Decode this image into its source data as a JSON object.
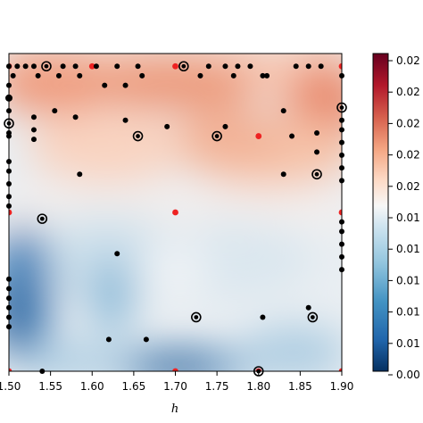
{
  "chart_data": {
    "type": "heatmap",
    "subtype": "filled-contour-with-scatter",
    "xlabel": "h",
    "ylabel": "",
    "xlim": [
      1.5,
      1.9
    ],
    "ylim": [
      0,
      1
    ],
    "x_ticks": [
      "1.50",
      "1.55",
      "1.60",
      "1.65",
      "1.70",
      "1.75",
      "1.80",
      "1.85",
      "1.90"
    ],
    "colormap": "RdBu_r",
    "colorbar": {
      "range": [
        0.0,
        0.027
      ],
      "tick_labels": [
        "0.00",
        "0.01",
        "0.01",
        "0.01",
        "0.01",
        "0.01",
        "0.02",
        "0.02",
        "0.02",
        "0.02",
        "0.02"
      ]
    },
    "red_points": [
      [
        1.5,
        0.96
      ],
      [
        1.6,
        0.96
      ],
      [
        1.7,
        0.96
      ],
      [
        1.9,
        0.96
      ],
      [
        1.8,
        0.74
      ],
      [
        1.5,
        0.5
      ],
      [
        1.7,
        0.5
      ],
      [
        1.9,
        0.5
      ],
      [
        1.5,
        0.0
      ],
      [
        1.7,
        0.0
      ],
      [
        1.8,
        0.0
      ],
      [
        1.9,
        0.0
      ]
    ],
    "black_points": [
      [
        1.5,
        0.96,
        3
      ],
      [
        1.51,
        0.96,
        3
      ],
      [
        1.52,
        0.96,
        3
      ],
      [
        1.53,
        0.96,
        3
      ],
      [
        1.545,
        0.96,
        5
      ],
      [
        1.565,
        0.96,
        3
      ],
      [
        1.58,
        0.96,
        3
      ],
      [
        1.605,
        0.96,
        3
      ],
      [
        1.63,
        0.96,
        3
      ],
      [
        1.655,
        0.96,
        3
      ],
      [
        1.71,
        0.96,
        5
      ],
      [
        1.74,
        0.96,
        3
      ],
      [
        1.76,
        0.96,
        3
      ],
      [
        1.775,
        0.96,
        3
      ],
      [
        1.79,
        0.96,
        3
      ],
      [
        1.845,
        0.96,
        3
      ],
      [
        1.86,
        0.96,
        3
      ],
      [
        1.875,
        0.96,
        3
      ],
      [
        1.505,
        0.93,
        3
      ],
      [
        1.535,
        0.93,
        3
      ],
      [
        1.56,
        0.93,
        3
      ],
      [
        1.585,
        0.93,
        3
      ],
      [
        1.66,
        0.93,
        3
      ],
      [
        1.73,
        0.93,
        3
      ],
      [
        1.77,
        0.93,
        3
      ],
      [
        1.805,
        0.93,
        3
      ],
      [
        1.81,
        0.93,
        3
      ],
      [
        1.9,
        0.93,
        3
      ],
      [
        1.5,
        0.9,
        3
      ],
      [
        1.615,
        0.9,
        3
      ],
      [
        1.64,
        0.9,
        3
      ],
      [
        1.5,
        0.86,
        4
      ],
      [
        1.5,
        0.82,
        3
      ],
      [
        1.5,
        0.78,
        5
      ],
      [
        1.9,
        0.83,
        5
      ],
      [
        1.9,
        0.79,
        3
      ],
      [
        1.9,
        0.76,
        3
      ],
      [
        1.9,
        0.72,
        3
      ],
      [
        1.9,
        0.68,
        3
      ],
      [
        1.9,
        0.64,
        3
      ],
      [
        1.9,
        0.6,
        3
      ],
      [
        1.53,
        0.8,
        3
      ],
      [
        1.555,
        0.82,
        3
      ],
      [
        1.5,
        0.75,
        3
      ],
      [
        1.58,
        0.8,
        3
      ],
      [
        1.53,
        0.76,
        3
      ],
      [
        1.5,
        0.74,
        3
      ],
      [
        1.53,
        0.73,
        3
      ],
      [
        1.64,
        0.79,
        3
      ],
      [
        1.69,
        0.77,
        3
      ],
      [
        1.655,
        0.74,
        5
      ],
      [
        1.75,
        0.74,
        5
      ],
      [
        1.76,
        0.77,
        3
      ],
      [
        1.83,
        0.82,
        3
      ],
      [
        1.87,
        0.75,
        3
      ],
      [
        1.84,
        0.74,
        3
      ],
      [
        1.87,
        0.69,
        3
      ],
      [
        1.87,
        0.62,
        5
      ],
      [
        1.83,
        0.62,
        3
      ],
      [
        1.5,
        0.66,
        3
      ],
      [
        1.5,
        0.63,
        3
      ],
      [
        1.5,
        0.59,
        3
      ],
      [
        1.5,
        0.55,
        3
      ],
      [
        1.5,
        0.52,
        3
      ],
      [
        1.585,
        0.62,
        3
      ],
      [
        1.54,
        0.48,
        5
      ],
      [
        1.9,
        0.47,
        3
      ],
      [
        1.9,
        0.44,
        3
      ],
      [
        1.9,
        0.4,
        3
      ],
      [
        1.9,
        0.36,
        3
      ],
      [
        1.9,
        0.32,
        3
      ],
      [
        1.63,
        0.37,
        3
      ],
      [
        1.5,
        0.29,
        3
      ],
      [
        1.5,
        0.26,
        3
      ],
      [
        1.5,
        0.23,
        3
      ],
      [
        1.5,
        0.2,
        3
      ],
      [
        1.5,
        0.17,
        3
      ],
      [
        1.5,
        0.14,
        3
      ],
      [
        1.725,
        0.17,
        5
      ],
      [
        1.865,
        0.17,
        5
      ],
      [
        1.805,
        0.17,
        3
      ],
      [
        1.86,
        0.2,
        3
      ],
      [
        1.62,
        0.1,
        3
      ],
      [
        1.665,
        0.1,
        3
      ],
      [
        1.54,
        0.0,
        3
      ],
      [
        1.8,
        0.0,
        5
      ]
    ]
  }
}
